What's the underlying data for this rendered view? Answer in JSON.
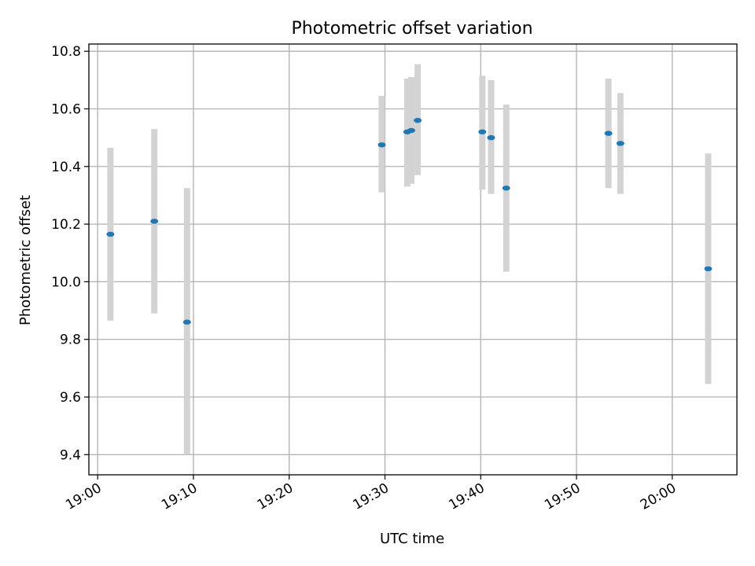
{
  "chart_data": {
    "type": "scatter",
    "title": "Photometric offset variation",
    "xlabel": "UTC time",
    "ylabel": "Photometric offset",
    "x_ticks": [
      "19:00",
      "19:10",
      "19:20",
      "19:30",
      "19:40",
      "19:50",
      "20:00"
    ],
    "y_ticks": [
      "9.4",
      "9.6",
      "9.8",
      "10.0",
      "10.2",
      "10.4",
      "10.6",
      "10.8"
    ],
    "xlim": [
      "18:59:05",
      "20:06:45"
    ],
    "ylim": [
      9.33,
      10.825
    ],
    "grid": true,
    "marker_color": "#1f77b4",
    "errorbar_color": "#d3d3d3",
    "series": [
      {
        "points": [
          {
            "x": "19:01:20",
            "y": 10.165,
            "yerr_low": 9.865,
            "yerr_high": 10.465
          },
          {
            "x": "19:05:55",
            "y": 10.21,
            "yerr_low": 9.89,
            "yerr_high": 10.53
          },
          {
            "x": "19:09:20",
            "y": 9.86,
            "yerr_low": 9.4,
            "yerr_high": 10.325
          },
          {
            "x": "19:29:40",
            "y": 10.475,
            "yerr_low": 10.31,
            "yerr_high": 10.645
          },
          {
            "x": "19:32:20",
            "y": 10.52,
            "yerr_low": 10.33,
            "yerr_high": 10.705
          },
          {
            "x": "19:32:45",
            "y": 10.525,
            "yerr_low": 10.34,
            "yerr_high": 10.71
          },
          {
            "x": "19:33:25",
            "y": 10.56,
            "yerr_low": 10.37,
            "yerr_high": 10.755
          },
          {
            "x": "19:40:10",
            "y": 10.52,
            "yerr_low": 10.32,
            "yerr_high": 10.715
          },
          {
            "x": "19:41:05",
            "y": 10.5,
            "yerr_low": 10.305,
            "yerr_high": 10.7
          },
          {
            "x": "19:42:40",
            "y": 10.325,
            "yerr_low": 10.035,
            "yerr_high": 10.615
          },
          {
            "x": "19:53:20",
            "y": 10.515,
            "yerr_low": 10.325,
            "yerr_high": 10.705
          },
          {
            "x": "19:54:35",
            "y": 10.48,
            "yerr_low": 10.305,
            "yerr_high": 10.655
          },
          {
            "x": "20:03:45",
            "y": 10.045,
            "yerr_low": 9.645,
            "yerr_high": 10.445
          }
        ]
      }
    ]
  }
}
